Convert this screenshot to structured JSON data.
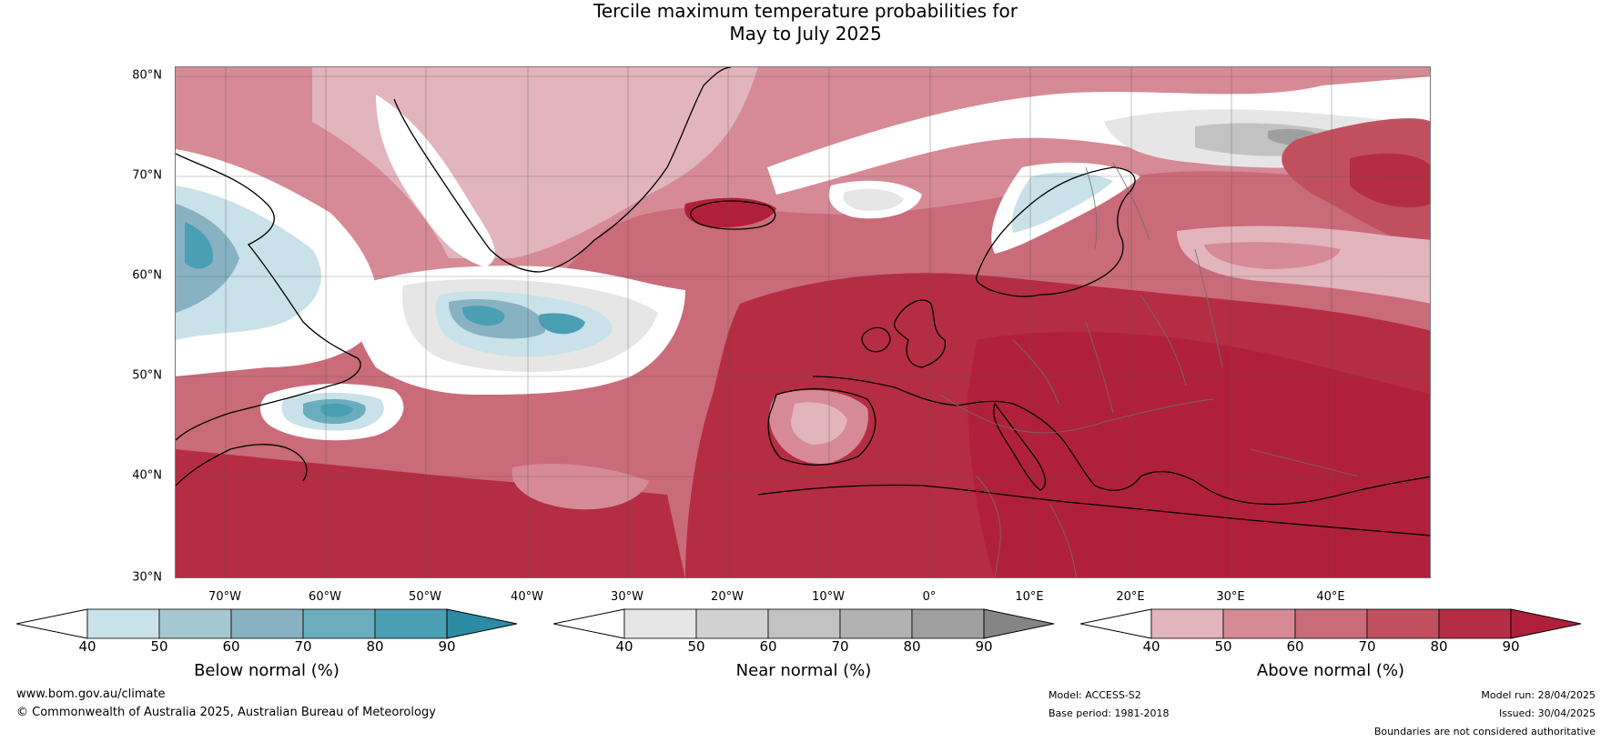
{
  "title": {
    "line1": "Tercile maximum temperature probabilities for",
    "line2": "May to July 2025"
  },
  "map": {
    "lat_labels": [
      "80°N",
      "70°N",
      "60°N",
      "50°N",
      "40°N",
      "30°N"
    ],
    "lon_labels": [
      "70°W",
      "60°W",
      "50°W",
      "40°W",
      "30°W",
      "20°W",
      "10°W",
      "0°",
      "10°E",
      "20°E",
      "30°E",
      "40°E"
    ]
  },
  "colorbars": [
    {
      "label": "Below normal (%)",
      "ticks": [
        "40",
        "50",
        "60",
        "70",
        "80",
        "90"
      ],
      "colors": [
        "#c9e1e8",
        "#a5c8d0",
        "#88b2c2",
        "#6aaebd",
        "#4a9fb3",
        "#2b8ca3"
      ]
    },
    {
      "label": "Near normal (%)",
      "ticks": [
        "40",
        "50",
        "60",
        "70",
        "80",
        "90"
      ],
      "colors": [
        "#e6e6e6",
        "#d2d2d2",
        "#c2c2c2",
        "#b2b2b2",
        "#9f9f9f",
        "#858585"
      ]
    },
    {
      "label": "Above normal (%)",
      "ticks": [
        "40",
        "50",
        "60",
        "70",
        "80",
        "90"
      ],
      "colors": [
        "#e2b4bc",
        "#d68a96",
        "#ca6b79",
        "#c1505f",
        "#b42d42",
        "#b0203a"
      ]
    }
  ],
  "footer": {
    "website": "www.bom.gov.au/climate",
    "copyright": "© Commonwealth of Australia 2025, Australian Bureau of Meteorology",
    "model": "Model: ACCESS-S2",
    "base_period": "Base period: 1981-2018",
    "model_run": "Model run: 28/04/2025",
    "issued": "Issued: 30/04/2025",
    "disclaimer": "Boundaries are not considered authoritative"
  }
}
